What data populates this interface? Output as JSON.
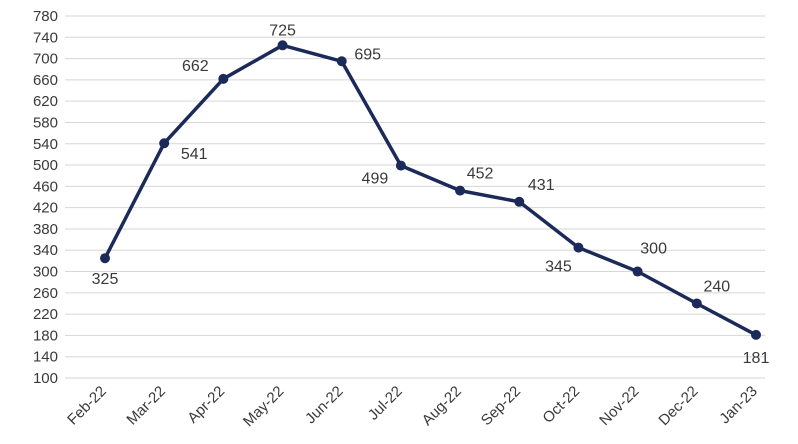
{
  "chart_data": {
    "type": "line",
    "categories": [
      "Feb-22",
      "Mar-22",
      "Apr-22",
      "May-22",
      "Jun-22",
      "Jul-22",
      "Aug-22",
      "Sep-22",
      "Oct-22",
      "Nov-22",
      "Dec-22",
      "Jan-23"
    ],
    "series": [
      {
        "values": [
          325,
          541,
          662,
          725,
          695,
          499,
          452,
          431,
          345,
          300,
          240,
          181
        ]
      }
    ],
    "data_labels": [
      "325",
      "541",
      "662",
      "725",
      "695",
      "499",
      "452",
      "431",
      "345",
      "300",
      "240",
      "181"
    ],
    "yticks": [
      "100",
      "140",
      "180",
      "220",
      "260",
      "300",
      "340",
      "380",
      "420",
      "460",
      "500",
      "540",
      "580",
      "620",
      "660",
      "700",
      "740",
      "780"
    ],
    "ylim": [
      100,
      780
    ],
    "grid": true,
    "legend": "none",
    "title": "",
    "xlabel": "",
    "ylabel": "",
    "colors": {
      "line": "#1c2a5a",
      "grid": "#d6d6d6",
      "text": "#3a3a3a"
    }
  }
}
